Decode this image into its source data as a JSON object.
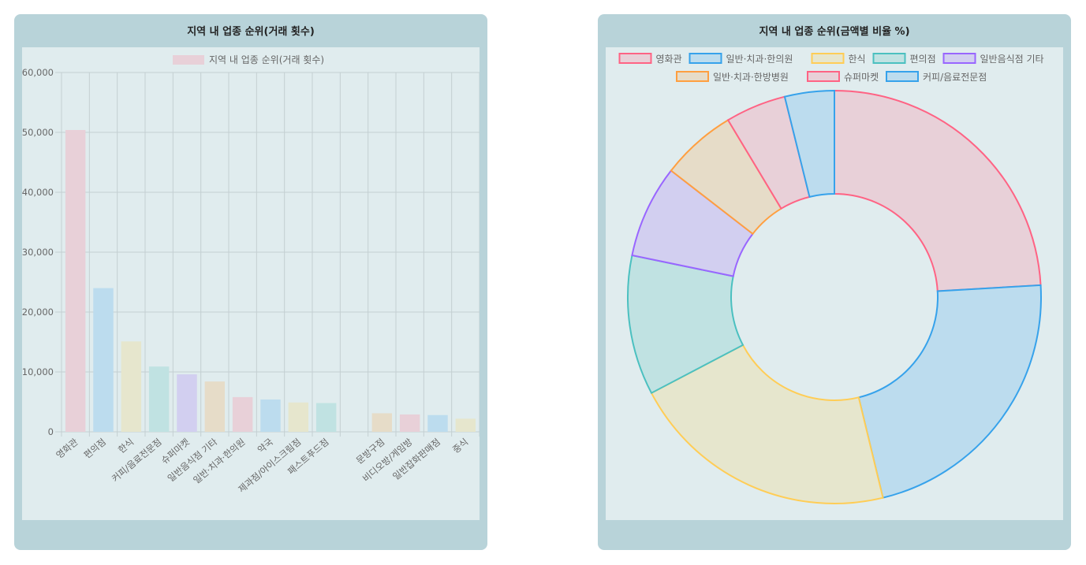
{
  "charts": {
    "bar": {
      "title": "지역 내 업종 순위(거래 횟수)",
      "legend_label": "지역 내 업종 순위(거래 횟수)"
    },
    "doughnut": {
      "title": "지역 내 업종 순위(금액별 비율 %)"
    }
  },
  "colors": {
    "panel_bg": "#b8d3d9",
    "plot_bg": "#e0ecee",
    "red_fill": "#e8d0d8",
    "red_stroke": "#ff6384",
    "blue_fill": "#bcdcee",
    "blue_stroke": "#36a2eb",
    "yellow_fill": "#e6e6cd",
    "yellow_stroke": "#ffcd56",
    "teal_fill": "#c0e2e2",
    "teal_stroke": "#4bc0c0",
    "purple_fill": "#d2cff0",
    "purple_stroke": "#9966ff",
    "orange_fill": "#e6dcc8",
    "orange_stroke": "#ff9f40"
  },
  "chart_data": [
    {
      "type": "bar",
      "title": "지역 내 업종 순위(거래 횟수)",
      "legend": [
        "지역 내 업종 순위(거래 횟수)"
      ],
      "legend_position": "top",
      "grid": true,
      "ylim": [
        0,
        60000
      ],
      "yticks": [
        0,
        10000,
        20000,
        30000,
        40000,
        50000,
        60000
      ],
      "ytick_labels": [
        "0",
        "10,000",
        "20,000",
        "30,000",
        "40,000",
        "50,000",
        "60,000"
      ],
      "categories": [
        "영화관",
        "편의점",
        "한식",
        "커피/음료전문점",
        "슈퍼마켓",
        "일반음식점 기타",
        "일반·치과·한의원",
        "약국",
        "제과점/아이스크림점",
        "패스트푸드점",
        "",
        "문방구점",
        "비디오방/게임방",
        "일반잡화판매점",
        "중식"
      ],
      "values": [
        50400,
        24000,
        15100,
        10900,
        9600,
        8400,
        5800,
        5400,
        4900,
        4800,
        0,
        3100,
        2900,
        2800,
        2200
      ],
      "color_cycle": [
        "red",
        "blue",
        "yellow",
        "teal",
        "purple",
        "orange"
      ]
    },
    {
      "type": "pie",
      "variant": "doughnut",
      "title": "지역 내 업종 순위(금액별 비율 %)",
      "legend_position": "top",
      "categories": [
        "영화관",
        "일반·치과·한의원",
        "한식",
        "편의점",
        "일반음식점 기타",
        "일반·치과·한방병원",
        "슈퍼마켓",
        "커피/음료전문점"
      ],
      "values": [
        24.9,
        22.9,
        21.8,
        11.3,
        7.5,
        6.1,
        4.9,
        4.0
      ],
      "colors": [
        "red",
        "blue",
        "yellow",
        "teal",
        "purple",
        "orange",
        "red",
        "blue"
      ]
    }
  ]
}
